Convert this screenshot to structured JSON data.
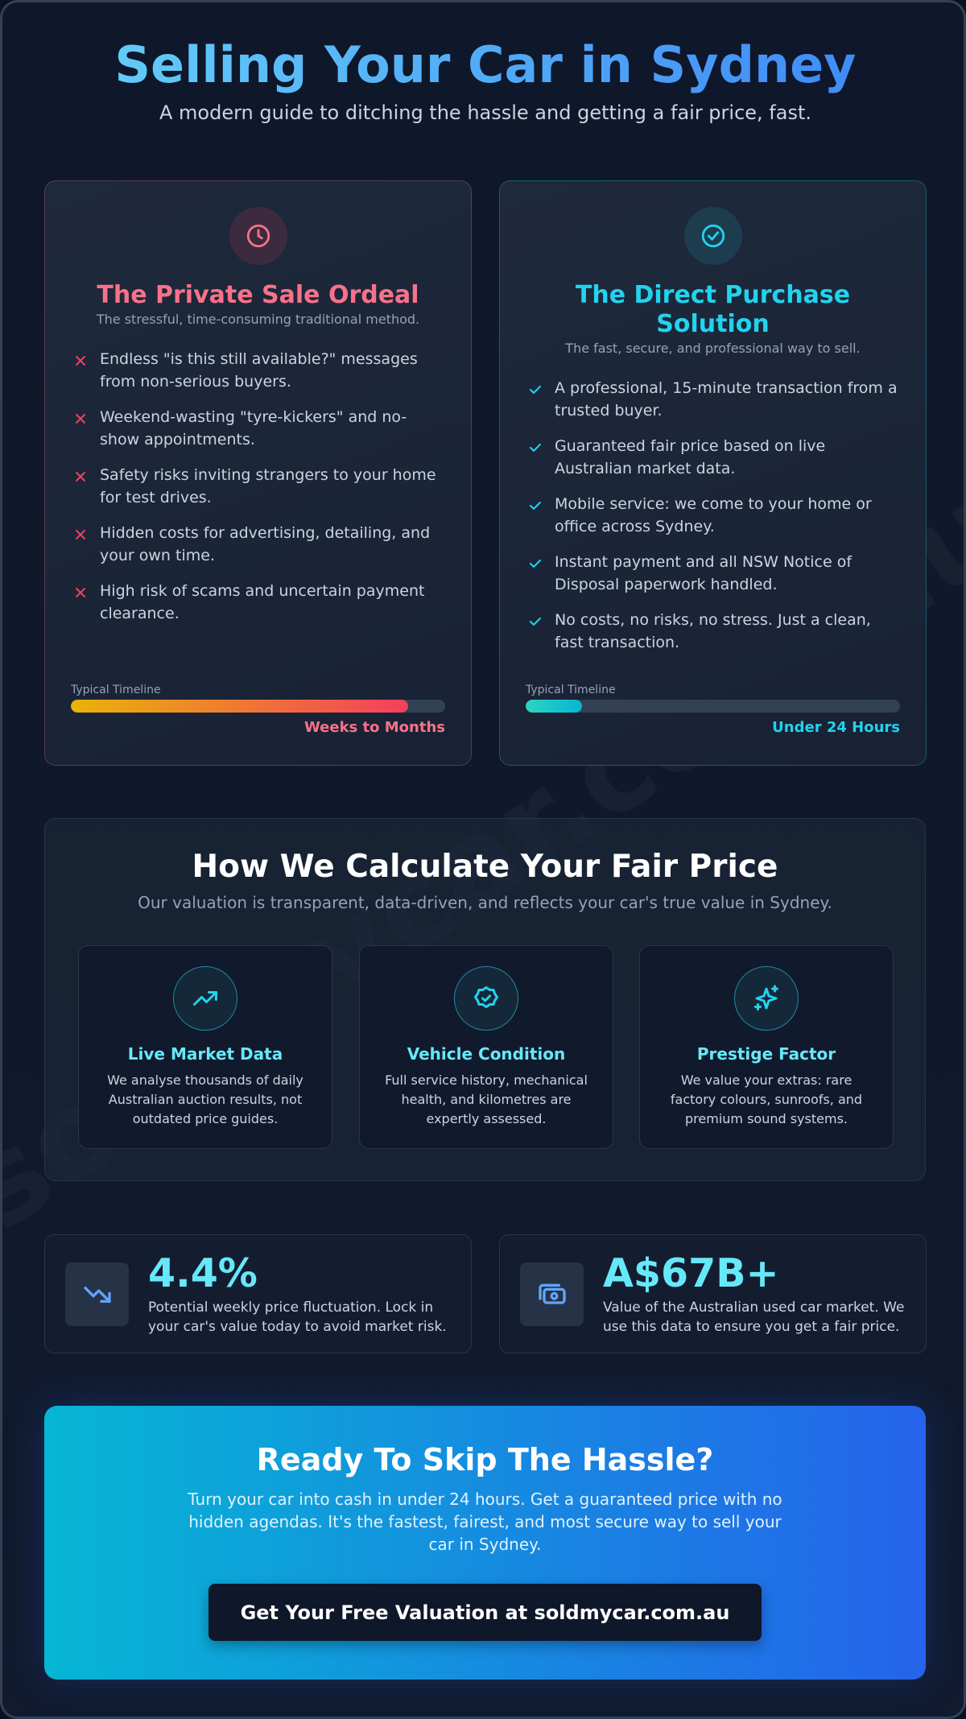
{
  "header": {
    "title": "Selling Your Car in Sydney",
    "subtitle": "A modern guide to ditching the hassle and getting a fair price, fast."
  },
  "watermark": "soldmycar.com.au",
  "comparison": [
    {
      "title": "The Private Sale Ordeal",
      "subtitle": "The stressful, time-consuming traditional method.",
      "items": [
        "Endless \"is this still available?\" messages from non-serious buyers.",
        "Weekend-wasting \"tyre-kickers\" and no-show appointments.",
        "Safety risks inviting strangers to your home for test drives.",
        "Hidden costs for advertising, detailing, and your own time.",
        "High risk of scams and uncertain payment clearance."
      ],
      "timeline_label": "Typical Timeline",
      "timeline_value": "Weeks to Months",
      "progress": 90
    },
    {
      "title": "The Direct Purchase Solution",
      "subtitle": "The fast, secure, and professional way to sell.",
      "items": [
        "A professional, 15-minute transaction from a trusted buyer.",
        "Guaranteed fair price based on live Australian market data.",
        "Mobile service: we come to your home or office across Sydney.",
        "Instant payment and all NSW Notice of Disposal paperwork handled.",
        "No costs, no risks, no stress. Just a clean, fast transaction."
      ],
      "timeline_label": "Typical Timeline",
      "timeline_value": "Under 24 Hours",
      "progress": 15
    }
  ],
  "valuation": {
    "title": "How We Calculate Your Fair Price",
    "subtitle": "Our valuation is transparent, data-driven, and reflects your car's true value in Sydney.",
    "factors": [
      {
        "title": "Live Market Data",
        "text": "We analyse thousands of daily Australian auction results, not outdated price guides."
      },
      {
        "title": "Vehicle Condition",
        "text": "Full service history, mechanical health, and kilometres are expertly assessed."
      },
      {
        "title": "Prestige Factor",
        "text": "We value your extras: rare factory colours, sunroofs, and premium sound systems."
      }
    ]
  },
  "stats": [
    {
      "value": "4.4%",
      "text": "Potential weekly price fluctuation. Lock in your car's value today to avoid market risk."
    },
    {
      "value": "A$67B+",
      "text": "Value of the Australian used car market. We use this data to ensure you get a fair price."
    }
  ],
  "cta": {
    "title": "Ready To Skip The Hassle?",
    "text": "Turn your car into cash in under 24 hours. Get a guaranteed price with no hidden agendas. It's the fastest, fairest, and most secure way to sell your car in Sydney.",
    "button": "Get Your Free Valuation at soldmycar.com.au"
  }
}
